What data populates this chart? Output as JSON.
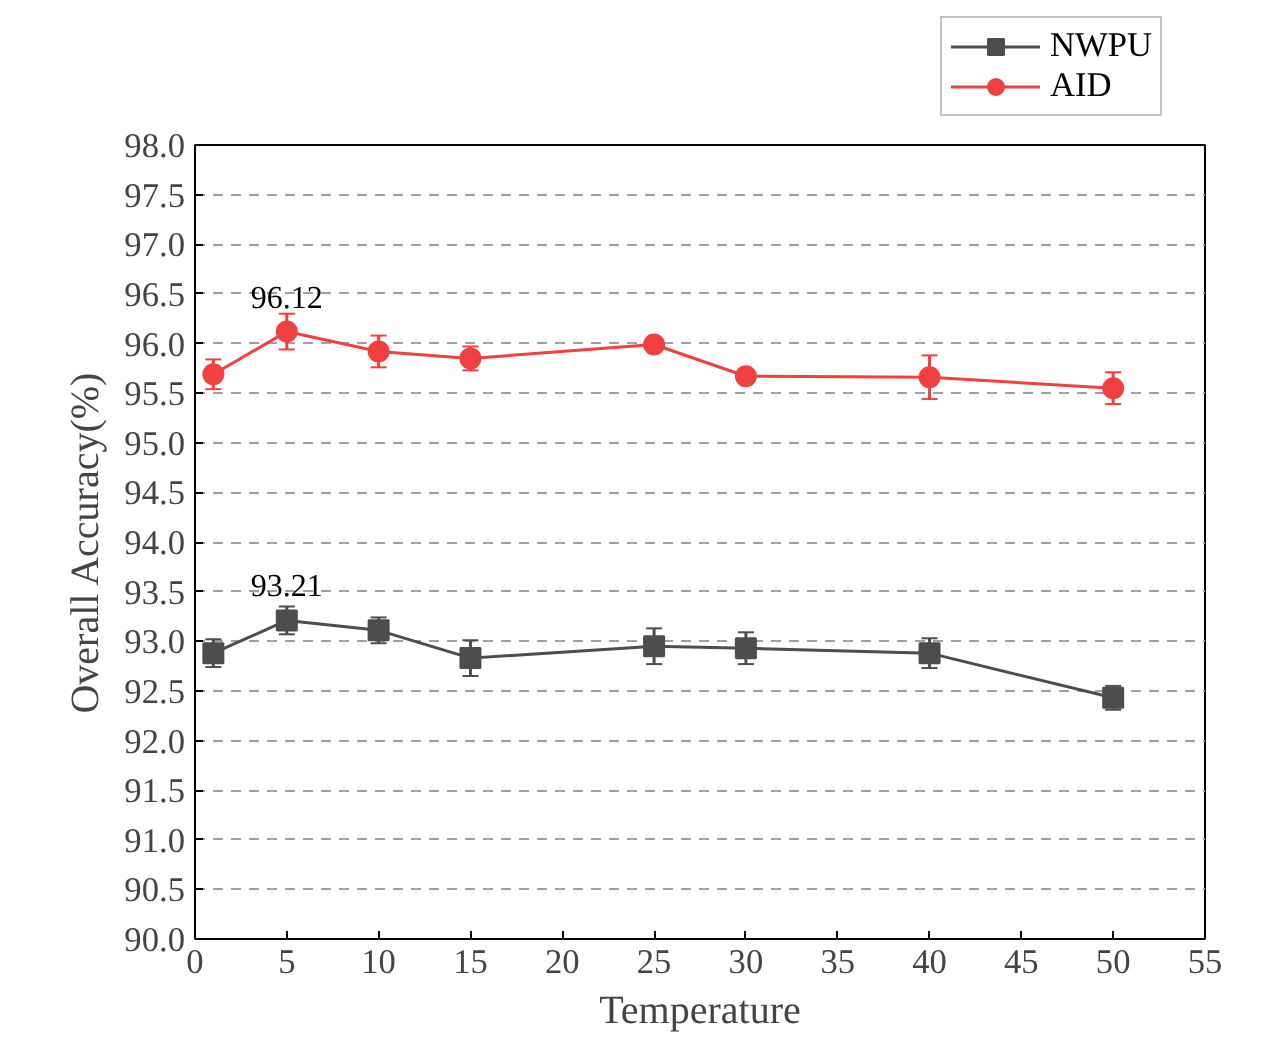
{
  "chart_data": {
    "type": "line",
    "xlabel": "Temperature",
    "ylabel": "Overall Accuracy(%)",
    "x": [
      1,
      5,
      10,
      15,
      25,
      30,
      40,
      50
    ],
    "series": [
      {
        "name": "NWPU",
        "color": "#4d4d4d",
        "marker": "square",
        "values": [
          92.88,
          93.21,
          93.11,
          92.83,
          92.95,
          92.93,
          92.88,
          92.43
        ],
        "errors": [
          0.14,
          0.14,
          0.13,
          0.18,
          0.18,
          0.16,
          0.15,
          0.12
        ],
        "value_labels": [
          null,
          "93.21",
          null,
          null,
          null,
          null,
          null,
          null
        ]
      },
      {
        "name": "AID",
        "color": "#f04040",
        "marker": "circle",
        "values": [
          95.69,
          96.12,
          95.92,
          95.85,
          95.99,
          95.67,
          95.66,
          95.55
        ],
        "errors": [
          0.15,
          0.18,
          0.16,
          0.12,
          0.04,
          0.05,
          0.22,
          0.16
        ],
        "value_labels": [
          null,
          "96.12",
          null,
          null,
          null,
          null,
          null,
          null
        ]
      }
    ],
    "xlim": [
      0,
      55
    ],
    "xticks": [
      0,
      5,
      10,
      15,
      20,
      25,
      30,
      35,
      40,
      45,
      50,
      55
    ],
    "ylim": [
      90,
      98
    ],
    "yticks": [
      {
        "value": 90,
        "label": "90.0"
      },
      {
        "value": 90.5,
        "label": "90.5"
      },
      {
        "value": 91,
        "label": "91.0"
      },
      {
        "value": 91.5,
        "label": "91.5"
      },
      {
        "value": 92,
        "label": "92.0"
      },
      {
        "value": 92.5,
        "label": "92.5"
      },
      {
        "value": 93,
        "label": "93.0"
      },
      {
        "value": 93.5,
        "label": "93.5"
      },
      {
        "value": 94,
        "label": "94.0"
      },
      {
        "value": 94.5,
        "label": "94.5"
      },
      {
        "value": 95,
        "label": "95.0"
      },
      {
        "value": 95.5,
        "label": "95.5"
      },
      {
        "value": 96,
        "label": "96.0"
      },
      {
        "value": 96.5,
        "label": "96.5"
      },
      {
        "value": 97,
        "label": "97.0"
      },
      {
        "value": 97.5,
        "label": "97.5"
      },
      {
        "value": 98,
        "label": "98.0"
      }
    ],
    "grid": "y",
    "legend": "top right",
    "line_style": "solid"
  }
}
